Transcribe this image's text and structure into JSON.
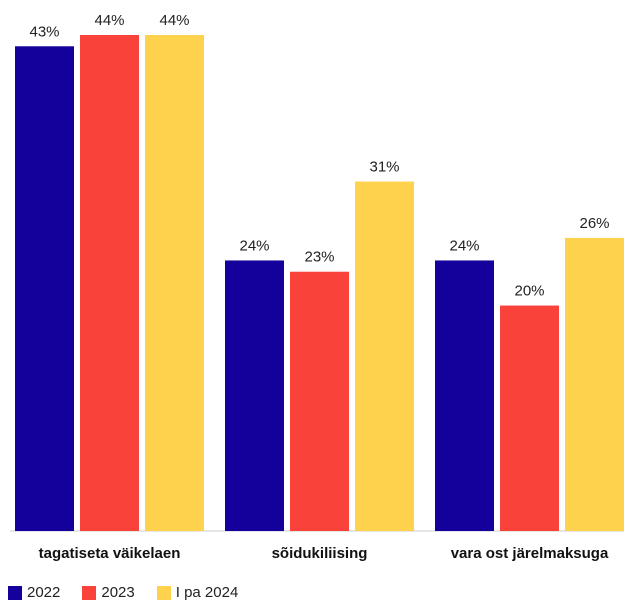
{
  "chart_data": {
    "type": "bar",
    "title": "",
    "xlabel": "",
    "ylabel": "",
    "ylim": [
      0,
      44
    ],
    "grid": false,
    "legend_position": "bottom-left",
    "categories": [
      "tagatiseta väikelaen",
      "sõidukiliising",
      "vara ost järelmaksuga"
    ],
    "series": [
      {
        "name": "2022",
        "values": [
          43,
          24,
          24
        ],
        "labels": [
          "43%",
          "24%",
          "24%"
        ],
        "color": "#14009a"
      },
      {
        "name": "2023",
        "values": [
          44,
          23,
          20
        ],
        "labels": [
          "44%",
          "23%",
          "20%"
        ],
        "color": "#f9423a"
      },
      {
        "name": "I pa 2024",
        "values": [
          44,
          31,
          26
        ],
        "labels": [
          "44%",
          "31%",
          "26%"
        ],
        "color": "#ffd24d"
      }
    ]
  }
}
